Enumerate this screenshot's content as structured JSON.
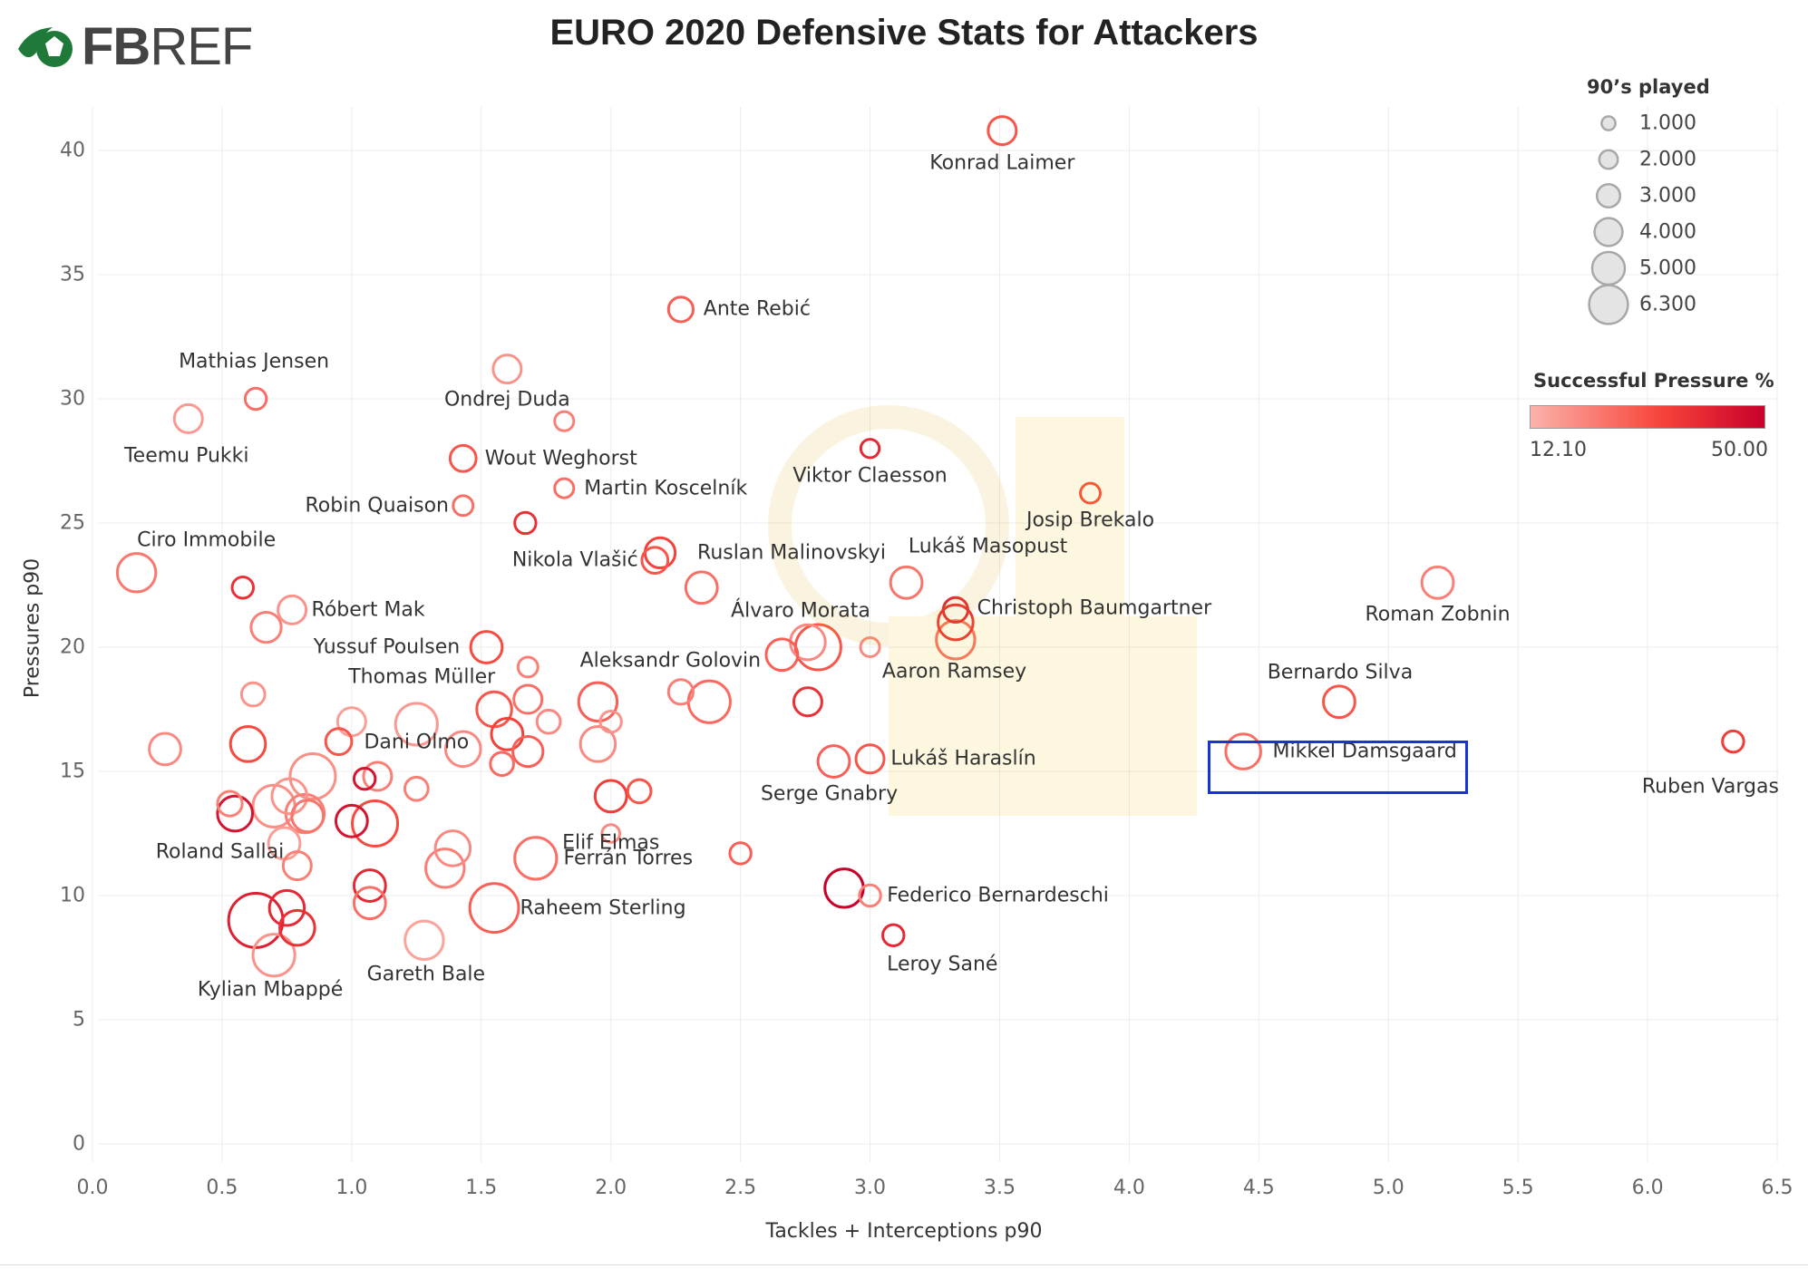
{
  "chart_data": {
    "type": "scatter",
    "title": "EURO 2020 Defensive Stats for Attackers",
    "xlabel": "Tackles + Interceptions p90",
    "ylabel": "Pressures p90",
    "xlim": [
      0,
      6.5
    ],
    "ylim": [
      0,
      42
    ],
    "x_ticks": [
      "0.0",
      "0.5",
      "1.0",
      "1.5",
      "2.0",
      "2.5",
      "3.0",
      "3.5",
      "4.0",
      "4.5",
      "5.0",
      "5.5",
      "6.0",
      "6.5"
    ],
    "y_ticks": [
      "0",
      "5",
      "10",
      "15",
      "20",
      "25",
      "30",
      "35",
      "40"
    ],
    "grid": true,
    "size_legend": {
      "title": "90’s played",
      "values": [
        "1.000",
        "2.000",
        "3.000",
        "4.000",
        "5.000",
        "6.300"
      ]
    },
    "color_legend": {
      "title": "Successful Pressure %",
      "min": "12.10",
      "max": "50.00",
      "min_color": "#fbb3ab",
      "max_color": "#c8002a"
    },
    "points": [
      {
        "x": 3.51,
        "y": 40.8,
        "label": "Konrad Laimer",
        "played": 2.5,
        "pressure_pct": 30
      },
      {
        "x": 2.27,
        "y": 33.6,
        "label": "Ante Rebić",
        "played": 2.0,
        "pressure_pct": 28
      },
      {
        "x": 0.63,
        "y": 30.0,
        "label": "Mathias Jensen",
        "played": 1.5,
        "pressure_pct": 25
      },
      {
        "x": 0.37,
        "y": 29.2,
        "label": "Teemu Pukki",
        "played": 2.5,
        "pressure_pct": 17
      },
      {
        "x": 1.6,
        "y": 31.2,
        "label": "Ondrej Duda",
        "played": 2.5,
        "pressure_pct": 18
      },
      {
        "x": 1.82,
        "y": 29.1,
        "label": "",
        "played": 1.2,
        "pressure_pct": 22
      },
      {
        "x": 1.43,
        "y": 27.6,
        "label": "Wout Weghorst",
        "played": 2.2,
        "pressure_pct": 30
      },
      {
        "x": 3.0,
        "y": 28.0,
        "label": "Viktor Claesson",
        "played": 1.1,
        "pressure_pct": 40
      },
      {
        "x": 1.82,
        "y": 26.4,
        "label": "Martin Koscelník",
        "played": 1.2,
        "pressure_pct": 25
      },
      {
        "x": 1.43,
        "y": 25.7,
        "label": "Robin Quaison",
        "played": 1.3,
        "pressure_pct": 25
      },
      {
        "x": 3.85,
        "y": 26.2,
        "label": "Josip Brekalo",
        "played": 1.3,
        "pressure_pct": 32
      },
      {
        "x": 1.67,
        "y": 25.0,
        "label": "",
        "played": 1.5,
        "pressure_pct": 38
      },
      {
        "x": 0.17,
        "y": 23.0,
        "label": "Ciro Immobile",
        "played": 4.0,
        "pressure_pct": 23
      },
      {
        "x": 2.19,
        "y": 23.8,
        "label": "Ruslan Malinovskyi",
        "played": 2.8,
        "pressure_pct": 34
      },
      {
        "x": 2.17,
        "y": 23.5,
        "label": "Nikola Vlašić",
        "played": 2.2,
        "pressure_pct": 30
      },
      {
        "x": 3.14,
        "y": 22.6,
        "label": "Lukáš Masopust",
        "played": 3.0,
        "pressure_pct": 24
      },
      {
        "x": 2.35,
        "y": 22.4,
        "label": "",
        "played": 3.0,
        "pressure_pct": 25
      },
      {
        "x": 0.58,
        "y": 22.4,
        "label": "",
        "played": 1.5,
        "pressure_pct": 38
      },
      {
        "x": 5.19,
        "y": 22.6,
        "label": "Roman Zobnin",
        "played": 3.0,
        "pressure_pct": 22
      },
      {
        "x": 3.33,
        "y": 21.5,
        "label": "Christoph Baumgartner",
        "played": 2.0,
        "pressure_pct": 40
      },
      {
        "x": 3.33,
        "y": 21.0,
        "label": "",
        "played": 3.5,
        "pressure_pct": 38
      },
      {
        "x": 0.77,
        "y": 21.5,
        "label": "Róbert Mak",
        "played": 2.5,
        "pressure_pct": 18
      },
      {
        "x": 0.67,
        "y": 20.8,
        "label": "",
        "played": 2.8,
        "pressure_pct": 22
      },
      {
        "x": 3.33,
        "y": 20.3,
        "label": "",
        "played": 4.0,
        "pressure_pct": 25
      },
      {
        "x": 2.76,
        "y": 20.2,
        "label": "Álvaro Morata",
        "played": 3.5,
        "pressure_pct": 20
      },
      {
        "x": 2.8,
        "y": 20.0,
        "label": "",
        "played": 5.0,
        "pressure_pct": 30
      },
      {
        "x": 1.52,
        "y": 20.0,
        "label": "Yussuf Poulsen",
        "played": 3.0,
        "pressure_pct": 32
      },
      {
        "x": 3.0,
        "y": 20.0,
        "label": "Aaron Ramsey",
        "played": 1.2,
        "pressure_pct": 20
      },
      {
        "x": 2.66,
        "y": 19.7,
        "label": "Aleksandr Golovin",
        "played": 3.0,
        "pressure_pct": 28
      },
      {
        "x": 1.68,
        "y": 19.2,
        "label": "Thomas Müller",
        "played": 1.3,
        "pressure_pct": 22
      },
      {
        "x": 4.81,
        "y": 17.8,
        "label": "Bernardo Silva",
        "played": 3.0,
        "pressure_pct": 30
      },
      {
        "x": 2.76,
        "y": 17.8,
        "label": "",
        "played": 2.5,
        "pressure_pct": 38
      },
      {
        "x": 1.95,
        "y": 17.8,
        "label": "",
        "played": 4.0,
        "pressure_pct": 28
      },
      {
        "x": 2.38,
        "y": 17.8,
        "label": "",
        "played": 4.5,
        "pressure_pct": 26
      },
      {
        "x": 2.27,
        "y": 18.2,
        "label": "",
        "played": 2.0,
        "pressure_pct": 22
      },
      {
        "x": 1.68,
        "y": 17.9,
        "label": "",
        "played": 2.5,
        "pressure_pct": 25
      },
      {
        "x": 1.55,
        "y": 17.5,
        "label": "",
        "played": 3.5,
        "pressure_pct": 30
      },
      {
        "x": 2.0,
        "y": 17.0,
        "label": "",
        "played": 1.5,
        "pressure_pct": 18
      },
      {
        "x": 1.76,
        "y": 17.0,
        "label": "",
        "played": 1.8,
        "pressure_pct": 20
      },
      {
        "x": 1.25,
        "y": 16.9,
        "label": "",
        "played": 4.5,
        "pressure_pct": 17
      },
      {
        "x": 1.0,
        "y": 17.0,
        "label": "",
        "played": 2.5,
        "pressure_pct": 16
      },
      {
        "x": 0.62,
        "y": 18.1,
        "label": "",
        "played": 1.8,
        "pressure_pct": 18
      },
      {
        "x": 1.6,
        "y": 16.5,
        "label": "Dani Olmo",
        "played": 3.0,
        "pressure_pct": 34
      },
      {
        "x": 0.28,
        "y": 15.9,
        "label": "",
        "played": 3.0,
        "pressure_pct": 20
      },
      {
        "x": 0.6,
        "y": 16.1,
        "label": "",
        "played": 3.5,
        "pressure_pct": 32
      },
      {
        "x": 0.95,
        "y": 16.2,
        "label": "",
        "played": 2.2,
        "pressure_pct": 30
      },
      {
        "x": 1.43,
        "y": 15.9,
        "label": "",
        "played": 3.5,
        "pressure_pct": 20
      },
      {
        "x": 1.68,
        "y": 15.8,
        "label": "",
        "played": 2.8,
        "pressure_pct": 28
      },
      {
        "x": 1.95,
        "y": 16.1,
        "label": "",
        "played": 3.5,
        "pressure_pct": 20
      },
      {
        "x": 1.58,
        "y": 15.3,
        "label": "",
        "played": 1.8,
        "pressure_pct": 26
      },
      {
        "x": 3.0,
        "y": 15.5,
        "label": "Lukáš Haraslín",
        "played": 2.5,
        "pressure_pct": 30
      },
      {
        "x": 2.86,
        "y": 15.4,
        "label": "Serge Gnabry",
        "played": 3.0,
        "pressure_pct": 28
      },
      {
        "x": 4.44,
        "y": 15.8,
        "label": "Mikkel Damsgaard",
        "played": 3.5,
        "pressure_pct": 25
      },
      {
        "x": 6.33,
        "y": 16.2,
        "label": "Ruben Vargas",
        "played": 1.5,
        "pressure_pct": 35
      },
      {
        "x": 0.85,
        "y": 14.8,
        "label": "",
        "played": 5.0,
        "pressure_pct": 19
      },
      {
        "x": 1.05,
        "y": 14.7,
        "label": "",
        "played": 1.5,
        "pressure_pct": 45
      },
      {
        "x": 1.1,
        "y": 14.8,
        "label": "",
        "played": 2.5,
        "pressure_pct": 22
      },
      {
        "x": 1.25,
        "y": 14.3,
        "label": "",
        "played": 1.8,
        "pressure_pct": 22
      },
      {
        "x": 2.0,
        "y": 14.0,
        "label": "",
        "played": 3.0,
        "pressure_pct": 35
      },
      {
        "x": 2.11,
        "y": 14.2,
        "label": "",
        "played": 1.8,
        "pressure_pct": 30
      },
      {
        "x": 0.53,
        "y": 13.7,
        "label": "",
        "played": 2.0,
        "pressure_pct": 22
      },
      {
        "x": 0.55,
        "y": 13.3,
        "label": "",
        "played": 3.5,
        "pressure_pct": 45
      },
      {
        "x": 0.7,
        "y": 13.6,
        "label": "",
        "played": 4.5,
        "pressure_pct": 19
      },
      {
        "x": 0.76,
        "y": 14.0,
        "label": "",
        "played": 3.5,
        "pressure_pct": 18
      },
      {
        "x": 0.82,
        "y": 13.3,
        "label": "",
        "played": 4.0,
        "pressure_pct": 22
      },
      {
        "x": 0.83,
        "y": 13.2,
        "label": "",
        "played": 3.0,
        "pressure_pct": 24
      },
      {
        "x": 1.0,
        "y": 13.0,
        "label": "",
        "played": 3.0,
        "pressure_pct": 45
      },
      {
        "x": 1.09,
        "y": 12.9,
        "label": "",
        "played": 5.0,
        "pressure_pct": 32
      },
      {
        "x": 0.74,
        "y": 12.1,
        "label": "Roland Sallai",
        "played": 3.0,
        "pressure_pct": 16
      },
      {
        "x": 0.79,
        "y": 11.2,
        "label": "",
        "played": 2.5,
        "pressure_pct": 22
      },
      {
        "x": 1.39,
        "y": 11.9,
        "label": "",
        "played": 3.5,
        "pressure_pct": 20
      },
      {
        "x": 1.36,
        "y": 11.1,
        "label": "",
        "played": 4.0,
        "pressure_pct": 22
      },
      {
        "x": 1.71,
        "y": 11.5,
        "label": "Ferrán Torres",
        "played": 4.5,
        "pressure_pct": 25
      },
      {
        "x": 2.0,
        "y": 12.5,
        "label": "Elif Elmas",
        "played": 1.0,
        "pressure_pct": 20
      },
      {
        "x": 2.5,
        "y": 11.7,
        "label": "",
        "played": 1.5,
        "pressure_pct": 28
      },
      {
        "x": 1.07,
        "y": 10.4,
        "label": "",
        "played": 3.0,
        "pressure_pct": 40
      },
      {
        "x": 2.9,
        "y": 10.3,
        "label": "",
        "played": 4.0,
        "pressure_pct": 50
      },
      {
        "x": 3.0,
        "y": 10.0,
        "label": "Federico Bernardeschi",
        "played": 1.5,
        "pressure_pct": 22
      },
      {
        "x": 1.07,
        "y": 9.7,
        "label": "",
        "played": 3.0,
        "pressure_pct": 25
      },
      {
        "x": 1.55,
        "y": 9.5,
        "label": "Raheem Sterling",
        "played": 5.5,
        "pressure_pct": 28
      },
      {
        "x": 0.75,
        "y": 9.5,
        "label": "",
        "played": 3.5,
        "pressure_pct": 40
      },
      {
        "x": 0.63,
        "y": 9.0,
        "label": "Kylian Mbappé",
        "played": 6.3,
        "pressure_pct": 42
      },
      {
        "x": 0.79,
        "y": 8.7,
        "label": "",
        "played": 3.5,
        "pressure_pct": 38
      },
      {
        "x": 1.28,
        "y": 8.2,
        "label": "Gareth Bale",
        "played": 4.0,
        "pressure_pct": 15
      },
      {
        "x": 0.7,
        "y": 7.6,
        "label": "",
        "played": 4.5,
        "pressure_pct": 18
      },
      {
        "x": 3.09,
        "y": 8.4,
        "label": "Leroy Sané",
        "played": 1.5,
        "pressure_pct": 40
      }
    ]
  }
}
